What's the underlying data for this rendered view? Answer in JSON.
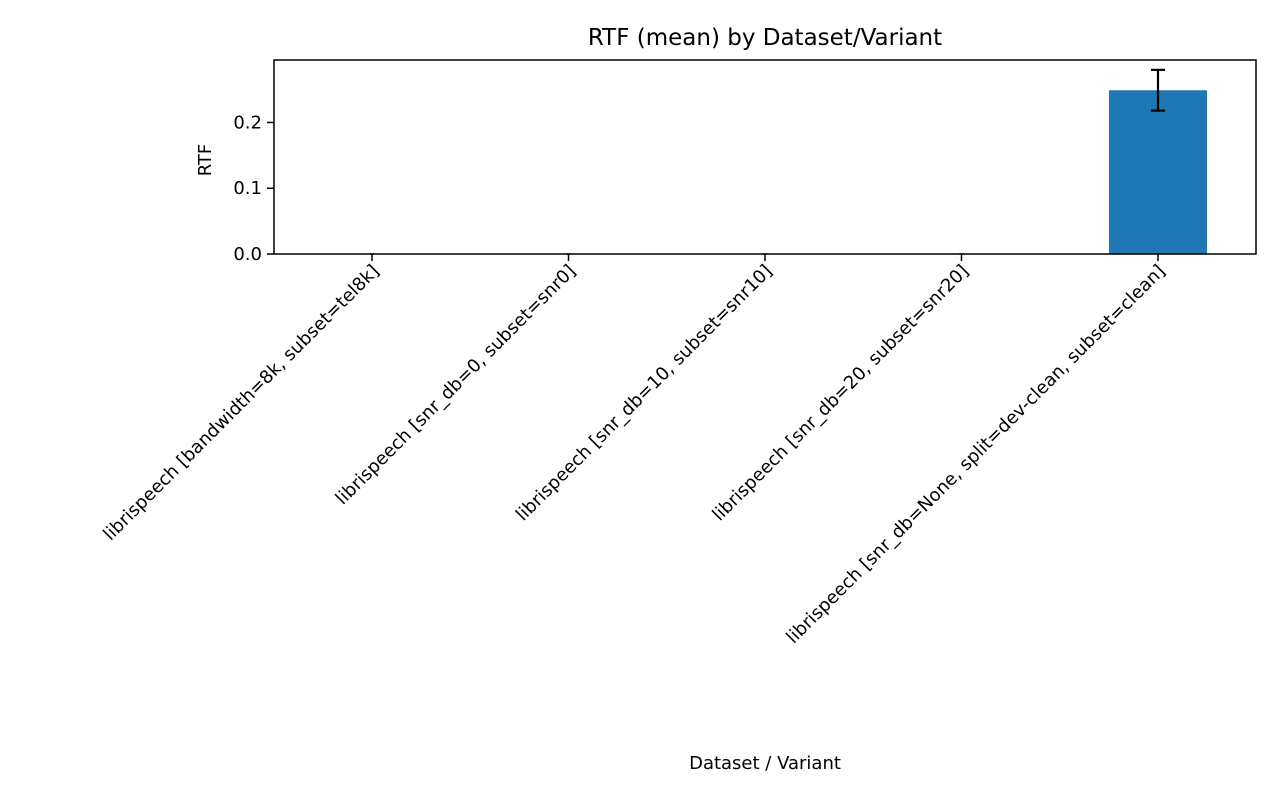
{
  "chart_data": {
    "type": "bar",
    "title": "RTF (mean) by Dataset/Variant",
    "xlabel": "Dataset / Variant",
    "ylabel": "RTF",
    "categories": [
      "librispeech [bandwidth=8k, subset=tel8k]",
      "librispeech [snr_db=0, subset=snr0]",
      "librispeech [snr_db=10, subset=snr10]",
      "librispeech [snr_db=20, subset=snr20]",
      "librispeech [snr_db=None, split=dev-clean, subset=clean]"
    ],
    "values": [
      0,
      0,
      0,
      0,
      0.249
    ],
    "errors": [
      0,
      0,
      0,
      0,
      0.031
    ],
    "ylim": [
      0,
      0.295
    ],
    "yticks": [
      0.0,
      0.1,
      0.2
    ],
    "ytick_labels": [
      "0.0",
      "0.1",
      "0.2"
    ],
    "grid": false,
    "bar_color": "#1f77b4",
    "error_color": "#000000"
  }
}
